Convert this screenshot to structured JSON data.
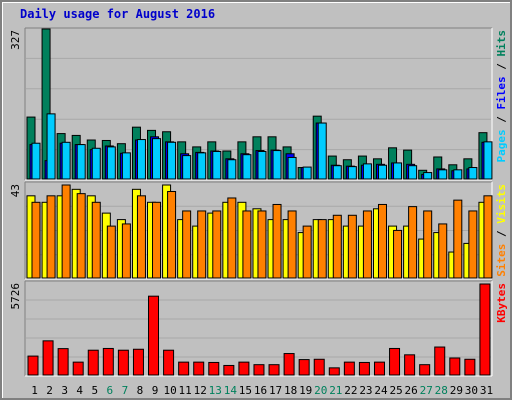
{
  "title": "Daily usage for August 2016",
  "chart_data": [
    {
      "type": "bar",
      "panel": "hits-files-pages",
      "max_label": "327",
      "axis_labels": [
        {
          "text": "Pages",
          "color": "#00ccff"
        },
        {
          "text": " / ",
          "color": "#000000"
        },
        {
          "text": "Files",
          "color": "#0000ff"
        },
        {
          "text": " / ",
          "color": "#000000"
        },
        {
          "text": "Hits",
          "color": "#00805c"
        }
      ],
      "ylim": [
        0,
        327
      ],
      "categories": [
        "1",
        "2",
        "3",
        "4",
        "5",
        "6",
        "7",
        "8",
        "9",
        "10",
        "11",
        "12",
        "13",
        "14",
        "15",
        "16",
        "17",
        "18",
        "19",
        "20",
        "21",
        "22",
        "23",
        "24",
        "25",
        "26",
        "27",
        "28",
        "29",
        "30",
        "31"
      ],
      "series": [
        {
          "name": "Hits",
          "color": "#00805c",
          "values": [
            135,
            327,
            99,
            95,
            85,
            84,
            77,
            113,
            106,
            103,
            81,
            70,
            81,
            61,
            81,
            92,
            92,
            70,
            25,
            137,
            50,
            42,
            50,
            44,
            68,
            63,
            19,
            48,
            31,
            44,
            101
          ]
        },
        {
          "name": "Files",
          "color": "#0000ff",
          "values": [
            75,
            40,
            78,
            75,
            64,
            72,
            56,
            85,
            92,
            81,
            55,
            58,
            61,
            44,
            55,
            62,
            63,
            55,
            25,
            122,
            30,
            28,
            30,
            32,
            35,
            32,
            10,
            22,
            18,
            22,
            80
          ]
        },
        {
          "name": "Pages",
          "color": "#00ccff",
          "values": [
            78,
            142,
            80,
            75,
            67,
            70,
            57,
            86,
            88,
            80,
            51,
            57,
            60,
            42,
            53,
            60,
            62,
            47,
            26,
            122,
            29,
            27,
            33,
            30,
            35,
            29,
            14,
            20,
            20,
            25,
            81
          ]
        }
      ]
    },
    {
      "type": "bar",
      "panel": "visits-sites",
      "max_label": "43",
      "axis_labels": [
        {
          "text": "Sites",
          "color": "#ff8000"
        },
        {
          "text": " / ",
          "color": "#000000"
        },
        {
          "text": "Visits",
          "color": "#ffff00"
        }
      ],
      "ylim": [
        0,
        43
      ],
      "categories": [
        "1",
        "2",
        "3",
        "4",
        "5",
        "6",
        "7",
        "8",
        "9",
        "10",
        "11",
        "12",
        "13",
        "14",
        "15",
        "16",
        "17",
        "18",
        "19",
        "20",
        "21",
        "22",
        "23",
        "24",
        "25",
        "26",
        "27",
        "28",
        "29",
        "30",
        "31"
      ],
      "series": [
        {
          "name": "Visits",
          "color": "#ffff00",
          "values": [
            38,
            35,
            38,
            41,
            38,
            30,
            27,
            41,
            35,
            43,
            27,
            24,
            30,
            35,
            35,
            32,
            27,
            27,
            21,
            27,
            27,
            24,
            24,
            32,
            24,
            24,
            18,
            21,
            12,
            16,
            35
          ]
        },
        {
          "name": "Sites",
          "color": "#ff8000",
          "values": [
            35,
            38,
            43,
            39,
            35,
            24,
            25,
            38,
            35,
            40,
            31,
            31,
            31,
            37,
            31,
            31,
            34,
            31,
            24,
            27,
            29,
            29,
            31,
            34,
            22,
            33,
            31,
            25,
            36,
            31,
            38
          ]
        }
      ]
    },
    {
      "type": "bar",
      "panel": "kbytes",
      "max_label": "5726",
      "axis_labels": [
        {
          "text": "KBytes",
          "color": "#ff0000"
        }
      ],
      "ylim": [
        0,
        5726
      ],
      "categories": [
        "1",
        "2",
        "3",
        "4",
        "5",
        "6",
        "7",
        "8",
        "9",
        "10",
        "11",
        "12",
        "13",
        "14",
        "15",
        "16",
        "17",
        "18",
        "19",
        "20",
        "21",
        "22",
        "23",
        "24",
        "25",
        "26",
        "27",
        "28",
        "29",
        "30",
        "31"
      ],
      "series": [
        {
          "name": "KBytes",
          "color": "#ff0000",
          "values": [
            1190,
            2150,
            1660,
            810,
            1560,
            1670,
            1560,
            1620,
            4960,
            1560,
            810,
            810,
            790,
            600,
            810,
            650,
            650,
            1350,
            970,
            990,
            450,
            810,
            790,
            810,
            1670,
            1270,
            650,
            1760,
            1070,
            990,
            5726
          ]
        }
      ]
    }
  ],
  "weekend_days": [
    "6",
    "7",
    "13",
    "14",
    "20",
    "21",
    "27",
    "28"
  ],
  "colors": {
    "weekday_label": "#000000",
    "weekend_label": "#00805c",
    "plot_bg": "#c0c0c0",
    "title": "#0000cc"
  }
}
